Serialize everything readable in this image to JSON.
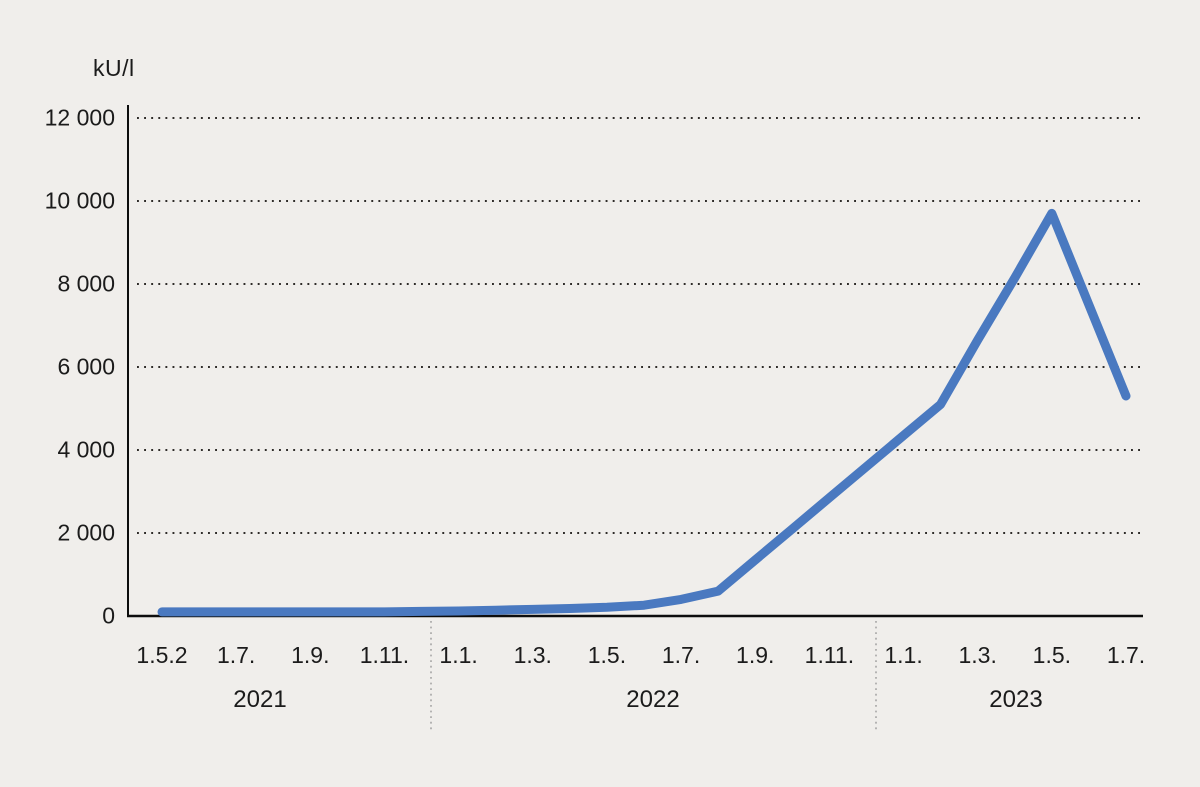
{
  "chart_data": {
    "type": "line",
    "title": "",
    "unit": "kU/l",
    "ylabel": "kU/l",
    "xlabel": "",
    "ylim": [
      0,
      12000
    ],
    "grid": "horizontal-dotted",
    "legend": "none",
    "line_color": "#4a79c0",
    "y_ticks": [
      {
        "value": 12000,
        "label": "12 000"
      },
      {
        "value": 10000,
        "label": "10 000"
      },
      {
        "value": 8000,
        "label": "8 000"
      },
      {
        "value": 6000,
        "label": "6 000"
      },
      {
        "value": 4000,
        "label": "4 000"
      },
      {
        "value": 2000,
        "label": "2 000"
      },
      {
        "value": 0,
        "label": "0"
      }
    ],
    "x_ticks": [
      {
        "month": "2021-05",
        "label": "1.5.2"
      },
      {
        "month": "2021-07",
        "label": "1.7."
      },
      {
        "month": "2021-09",
        "label": "1.9."
      },
      {
        "month": "2021-11",
        "label": "1.11."
      },
      {
        "month": "2022-01",
        "label": "1.1."
      },
      {
        "month": "2022-03",
        "label": "1.3."
      },
      {
        "month": "2022-05",
        "label": "1.5."
      },
      {
        "month": "2022-07",
        "label": "1.7."
      },
      {
        "month": "2022-09",
        "label": "1.9."
      },
      {
        "month": "2022-11",
        "label": "1.11."
      },
      {
        "month": "2023-01",
        "label": "1.1."
      },
      {
        "month": "2023-03",
        "label": "1.3."
      },
      {
        "month": "2023-05",
        "label": "1.5."
      },
      {
        "month": "2023-07",
        "label": "1.7."
      }
    ],
    "years": [
      {
        "label": "2021"
      },
      {
        "label": "2022"
      },
      {
        "label": "2023"
      }
    ],
    "points": [
      {
        "month": "2021-05",
        "value": 100
      },
      {
        "month": "2021-06",
        "value": 100
      },
      {
        "month": "2021-07",
        "value": 100
      },
      {
        "month": "2021-08",
        "value": 100
      },
      {
        "month": "2021-09",
        "value": 100
      },
      {
        "month": "2021-10",
        "value": 100
      },
      {
        "month": "2021-11",
        "value": 100
      },
      {
        "month": "2021-12",
        "value": 110
      },
      {
        "month": "2022-01",
        "value": 120
      },
      {
        "month": "2022-02",
        "value": 140
      },
      {
        "month": "2022-03",
        "value": 160
      },
      {
        "month": "2022-04",
        "value": 180
      },
      {
        "month": "2022-05",
        "value": 210
      },
      {
        "month": "2022-06",
        "value": 260
      },
      {
        "month": "2022-07",
        "value": 400
      },
      {
        "month": "2022-08",
        "value": 600
      },
      {
        "month": "2022-09",
        "value": 1350
      },
      {
        "month": "2022-10",
        "value": 2100
      },
      {
        "month": "2022-11",
        "value": 2850
      },
      {
        "month": "2022-12",
        "value": 3600
      },
      {
        "month": "2023-01",
        "value": 4350
      },
      {
        "month": "2023-02",
        "value": 5100
      },
      {
        "month": "2023-03",
        "value": 6650
      },
      {
        "month": "2023-04",
        "value": 8150
      },
      {
        "month": "2023-05",
        "value": 9700
      },
      {
        "month": "2023-06",
        "value": 7500
      },
      {
        "month": "2023-07",
        "value": 5300
      }
    ]
  }
}
